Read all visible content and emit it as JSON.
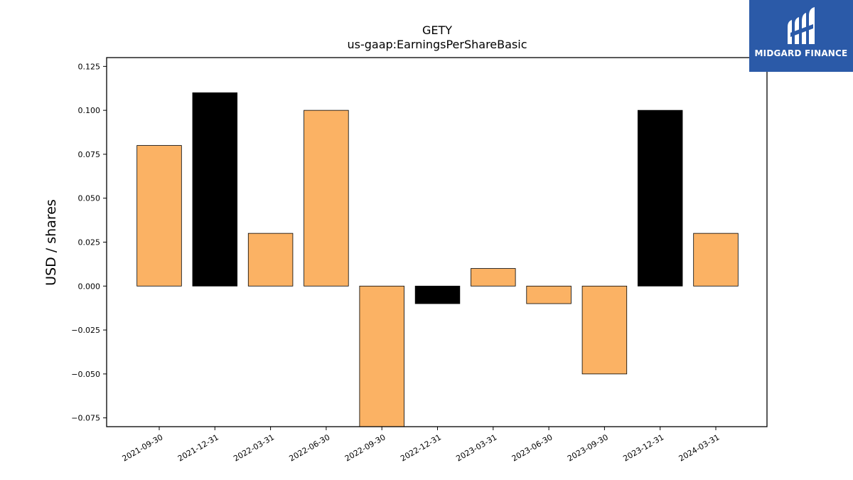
{
  "brand": {
    "name": "MIDGARD FINANCE",
    "bg_color": "#2b5aa8",
    "icon": "midgard-logo-icon"
  },
  "chart_data": {
    "type": "bar",
    "title": "GETY",
    "subtitle": "us-gaap:EarningsPerShareBasic",
    "xlabel": "",
    "ylabel": "USD / shares",
    "categories": [
      "2021-09-30",
      "2021-12-31",
      "2022-03-31",
      "2022-06-30",
      "2022-09-30",
      "2022-12-31",
      "2023-03-31",
      "2023-06-30",
      "2023-09-30",
      "2023-12-31",
      "2024-03-31"
    ],
    "values": [
      0.08,
      0.11,
      0.03,
      0.1,
      -0.08,
      -0.01,
      0.01,
      -0.01,
      -0.05,
      0.1,
      0.03
    ],
    "bar_colors": [
      "#fbb264",
      "#000000",
      "#fbb264",
      "#fbb264",
      "#fbb264",
      "#000000",
      "#fbb264",
      "#fbb264",
      "#fbb264",
      "#000000",
      "#fbb264"
    ],
    "ylim": [
      -0.08,
      0.13
    ],
    "yticks": [
      -0.075,
      -0.05,
      -0.025,
      0.0,
      0.025,
      0.05,
      0.075,
      0.1,
      0.125
    ],
    "ytick_labels": [
      "−0.075",
      "−0.050",
      "−0.025",
      "0.000",
      "0.025",
      "0.050",
      "0.075",
      "0.100",
      "0.125"
    ],
    "grid": false
  }
}
